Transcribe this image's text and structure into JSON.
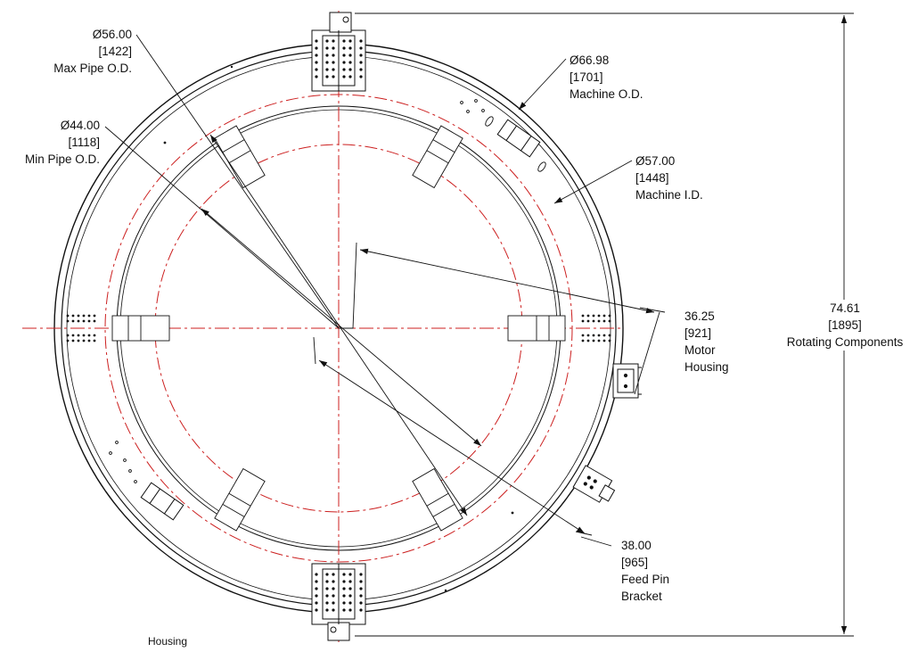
{
  "diagram": {
    "callouts": {
      "max_pipe": {
        "dim": "Ø56.00",
        "metric": "[1422]",
        "desc": "Max Pipe O.D."
      },
      "min_pipe": {
        "dim": "Ø44.00",
        "metric": "[1118]",
        "desc": "Min Pipe O.D."
      },
      "machine_od": {
        "dim": "Ø66.98",
        "metric": "[1701]",
        "desc": "Machine O.D."
      },
      "machine_id": {
        "dim": "Ø57.00",
        "metric": "[1448]",
        "desc": "Machine I.D."
      },
      "motor_housing": {
        "dim": "36.25",
        "metric": "[921]",
        "desc1": "Motor",
        "desc2": "Housing"
      },
      "feed_pin": {
        "dim": "38.00",
        "metric": "[965]",
        "desc1": "Feed Pin",
        "desc2": "Bracket"
      },
      "rotating": {
        "dim": "74.61",
        "metric": "[1895]",
        "desc": "Rotating Components"
      }
    },
    "footer_label": "Housing",
    "colors": {
      "line": "#111111",
      "centerline": "#cc1f1f",
      "background": "#ffffff"
    }
  }
}
